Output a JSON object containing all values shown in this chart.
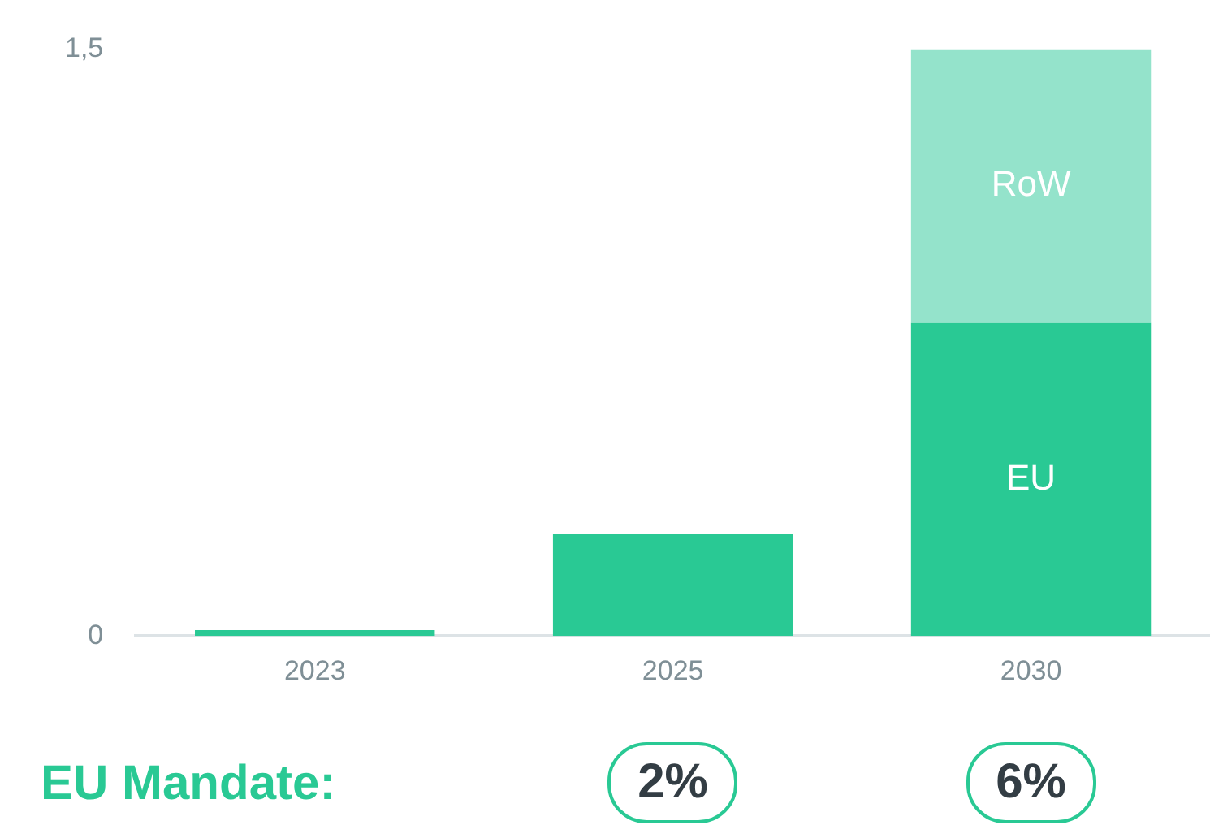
{
  "chart_data": {
    "type": "bar",
    "stacked": true,
    "categories": [
      "2023",
      "2025",
      "2030"
    ],
    "series": [
      {
        "name": "EU",
        "color": "#29c994",
        "values": [
          0.015,
          0.26,
          0.8
        ]
      },
      {
        "name": "RoW",
        "color": "#94e3cb",
        "values": [
          0,
          0,
          0.7
        ]
      }
    ],
    "ylim": [
      0,
      1.5
    ],
    "yticks": [
      {
        "value": 0,
        "label": "0"
      },
      {
        "value": 1.5,
        "label": "1,5"
      }
    ],
    "grid": false,
    "legend": false,
    "annotations": [
      "EU Mandate:",
      "2%",
      "6%"
    ]
  }
}
